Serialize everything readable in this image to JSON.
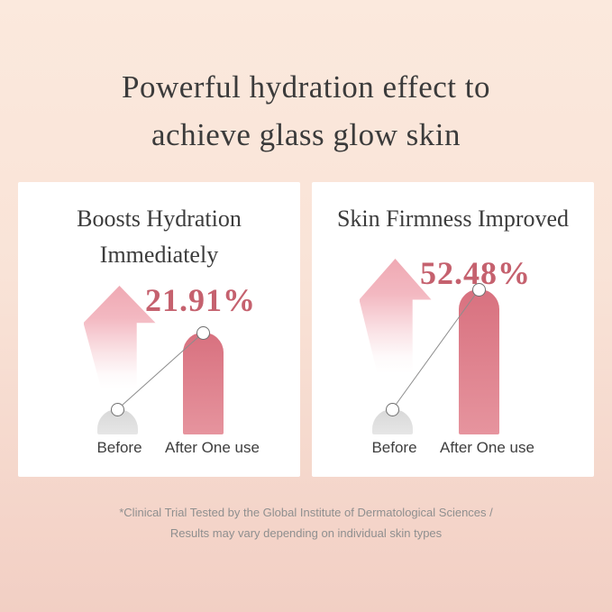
{
  "header": {
    "title": "Powerful hydration effect to\nachieve glass glow skin"
  },
  "cards": [
    {
      "title": "Boosts Hydration\nImmediately"
    },
    {
      "title": "Skin Firmness Improved"
    }
  ],
  "chart_data": [
    {
      "type": "bar",
      "title": "Boosts Hydration Immediately",
      "categories": [
        "Before",
        "After One use"
      ],
      "values": [
        1,
        4.04
      ],
      "values_note": "relative bar display heights, estimated from pixels; no axis shown",
      "annotation": "21.91%",
      "improvement_pct": 21.91,
      "grid": false,
      "legend": "none",
      "marker_style": "white circles at bar tops connected by thin line"
    },
    {
      "type": "bar",
      "title": "Skin Firmness Improved",
      "categories": [
        "Before",
        "After One use"
      ],
      "values": [
        1,
        5.75
      ],
      "values_note": "relative bar display heights, estimated from pixels; no axis shown",
      "annotation": "52.48%",
      "improvement_pct": 52.48,
      "grid": false,
      "legend": "none",
      "marker_style": "white circles at bar tops connected by thin line"
    }
  ],
  "footer": {
    "disclaimer": "*Clinical Trial Tested by the Global Institute of Dermatological Sciences /\nResults may vary depending on individual skin types"
  },
  "colors": {
    "background_top": "#FBE9DD",
    "background_bottom": "#F2CFC4",
    "card_background": "#FFFFFF",
    "title_text": "#3B3B3B",
    "accent_rose": "#C5616E",
    "bar_pink_top": "#D8717F",
    "bar_pink_bottom": "#E6949E",
    "bar_gray": "#DCDCDC",
    "arrow_pink": "#EFA9B3",
    "muted_text": "#8F8F8F"
  }
}
